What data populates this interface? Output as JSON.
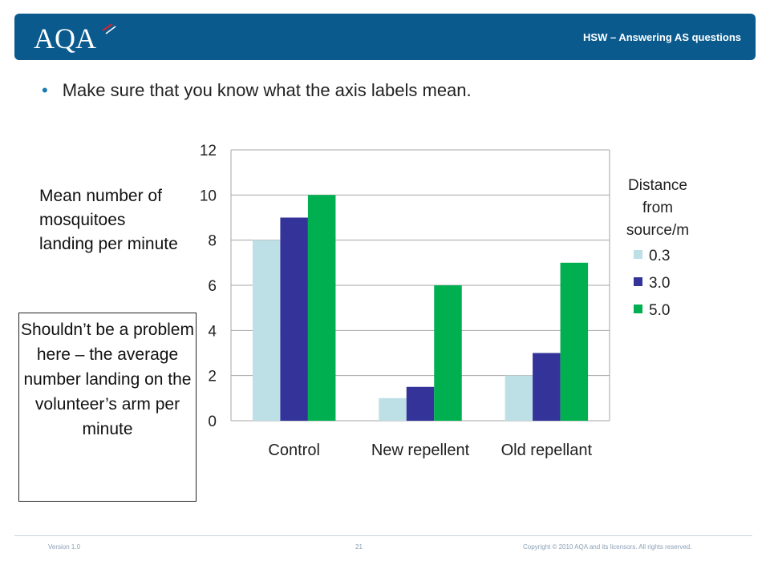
{
  "header": {
    "logo_text": "AQA",
    "title": "HSW – Answering AS questions"
  },
  "bullet": "Make sure that you know what the axis labels mean.",
  "ylabel": "Mean number of mosquitoes landing per minute",
  "note": "Shouldn’t be a problem here – the average number landing on the volunteer’s arm per minute",
  "legend": {
    "title": "Distance from source/m",
    "items": [
      "0.3",
      "3.0",
      "5.0"
    ]
  },
  "colors": {
    "header": "#0a5a8e",
    "s1": "#bde0e6",
    "s2": "#33339a",
    "s3": "#00b050"
  },
  "chart_data": {
    "type": "bar",
    "categories": [
      "Control",
      "New repellent",
      "Old repellant"
    ],
    "series": [
      {
        "name": "0.3",
        "values": [
          8,
          1,
          2
        ]
      },
      {
        "name": "3.0",
        "values": [
          9,
          1.5,
          3
        ]
      },
      {
        "name": "5.0",
        "values": [
          10,
          6,
          7
        ]
      }
    ],
    "ylim": [
      0,
      12
    ],
    "yticks": [
      "0",
      "2",
      "4",
      "6",
      "8",
      "10",
      "12"
    ],
    "legend_title": "Distance from source/m",
    "legend_position": "right",
    "grid": true
  },
  "footer": {
    "version": "Version 1.0",
    "page": "21",
    "copyright": "Copyright © 2010 AQA and its licensors. All rights reserved."
  }
}
